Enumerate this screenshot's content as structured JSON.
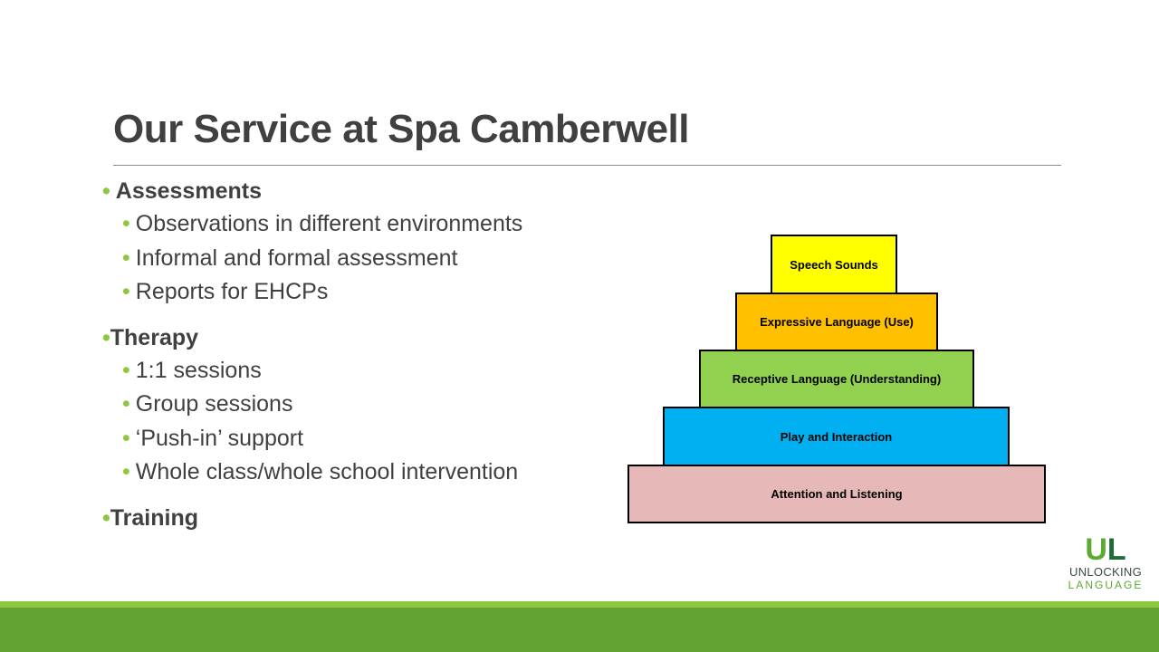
{
  "title": "Our Service at Spa Camberwell",
  "sections": [
    {
      "heading": "Assessments",
      "items": [
        "Observations in different environments",
        "Informal and formal assessment",
        "Reports for EHCPs"
      ]
    },
    {
      "heading": "Therapy",
      "items": [
        "1:1 sessions",
        "Group sessions",
        "‘Push-in’ support",
        "Whole class/whole school intervention"
      ]
    },
    {
      "heading": "Training",
      "items": []
    }
  ],
  "pyramid": [
    {
      "label": "Speech Sounds",
      "color": "#ffff00"
    },
    {
      "label": "Expressive Language (Use)",
      "color": "#ffc000"
    },
    {
      "label": "Receptive Language (Understanding)",
      "color": "#92d050"
    },
    {
      "label": "Play and Interaction",
      "color": "#00b0f0"
    },
    {
      "label": "Attention and Listening",
      "color": "#e6b8b7"
    }
  ],
  "logo": {
    "mark": "UL",
    "line1": "UNLOCKING",
    "line2": "LANGUAGE"
  },
  "colors": {
    "accent": "#8dc63f",
    "footer": "#62a332",
    "text": "#404040"
  }
}
